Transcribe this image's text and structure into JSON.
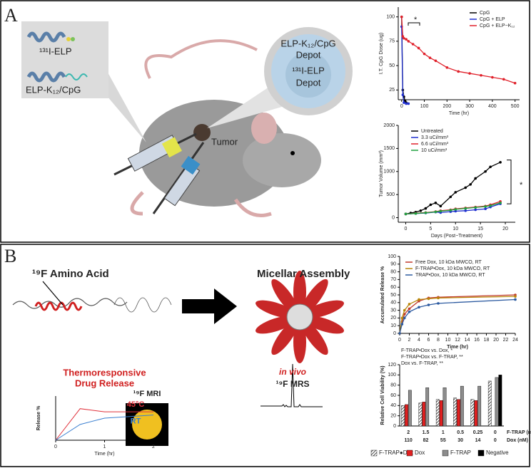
{
  "panels": [
    {
      "label": "A",
      "texts": [
        "¹³¹I-ELP",
        "ELP-K₁₂/CpG",
        "ELP-K₁₂/CpG",
        "Depot",
        "¹³¹I-ELP",
        "Depot",
        "Tumor"
      ]
    },
    {
      "label": "B",
      "texts": [
        "¹⁹F Amino Acid",
        "Micellar Assembly",
        "¹⁹F MRI",
        "in vivo",
        "¹⁹F MRS"
      ]
    }
  ],
  "chart_data": [
    {
      "type": "line",
      "x_label": "Time (hr)",
      "y_label": "I.T. CpG Dose (ug)",
      "xlim": [
        -15,
        520
      ],
      "xticks": [
        0,
        100,
        200,
        300,
        400,
        500
      ],
      "ylim": [
        15,
        110
      ],
      "yticks": [
        25,
        50,
        75,
        100
      ],
      "legend": "upper right",
      "annotation": "*",
      "series": [
        {
          "name": "CpG",
          "color": "#000000",
          "x": [
            0,
            5,
            10,
            15,
            20
          ],
          "values": [
            100,
            25,
            18,
            14,
            12
          ]
        },
        {
          "name": "CpG + ELP",
          "color": "#1f2fd0",
          "x": [
            0,
            5,
            10,
            20,
            30
          ],
          "values": [
            90,
            20,
            12,
            11,
            11
          ]
        },
        {
          "name": "CpG + ELP−K₁₂",
          "color": "#e0202a",
          "x": [
            0,
            5,
            10,
            20,
            30,
            50,
            75,
            100,
            125,
            150,
            200,
            250,
            300,
            350,
            400,
            450,
            500
          ],
          "values": [
            100,
            80,
            78,
            77,
            75,
            72,
            68,
            62,
            58,
            55,
            48,
            44,
            42,
            40,
            38,
            36,
            32
          ]
        }
      ]
    },
    {
      "type": "line",
      "x_label": "Days (Post−Treatment)",
      "y_label": "Tumor Volume (mm³)",
      "xlim": [
        -1.5,
        22
      ],
      "xticks": [
        0,
        5,
        10,
        15,
        20
      ],
      "ylim": [
        -100,
        2000
      ],
      "yticks": [
        0,
        500,
        1000,
        1500,
        2000
      ],
      "legend": "upper left",
      "annotation": "*",
      "series": [
        {
          "name": "Untreated",
          "color": "#000000",
          "x": [
            0,
            1,
            2,
            3,
            4,
            5,
            6,
            7,
            9,
            10,
            12,
            13,
            14,
            16,
            17,
            19
          ],
          "values": [
            80,
            100,
            120,
            150,
            200,
            280,
            320,
            250,
            450,
            550,
            650,
            720,
            850,
            1000,
            1100,
            1200
          ]
        },
        {
          "name": "3.3 uCi/mm³",
          "color": "#1f2fd0",
          "x": [
            0,
            2,
            4,
            6,
            7,
            9,
            10,
            12,
            14,
            16,
            17,
            19
          ],
          "values": [
            80,
            90,
            100,
            120,
            110,
            130,
            140,
            150,
            170,
            190,
            230,
            300
          ]
        },
        {
          "name": "6.6 uCi/mm³",
          "color": "#e0202a",
          "x": [
            0,
            2,
            4,
            6,
            7,
            9,
            10,
            12,
            14,
            16,
            17,
            19
          ],
          "values": [
            80,
            95,
            110,
            130,
            150,
            170,
            190,
            210,
            230,
            250,
            280,
            350
          ]
        },
        {
          "name": "10 uCi/mm³",
          "color": "#20a040",
          "x": [
            0,
            2,
            4,
            6,
            7,
            9,
            10,
            12,
            14,
            16,
            17,
            19
          ],
          "values": [
            80,
            90,
            105,
            125,
            140,
            160,
            180,
            200,
            220,
            240,
            260,
            320
          ]
        }
      ]
    },
    {
      "type": "line",
      "x_label": "Time (hr)",
      "y_label": "Accumulated Release %",
      "xlim": [
        0,
        24
      ],
      "xticks": [
        0,
        2,
        4,
        6,
        8,
        10,
        12,
        14,
        16,
        18,
        20,
        22,
        24
      ],
      "ylim": [
        0,
        100
      ],
      "yticks": [
        0,
        10,
        20,
        30,
        40,
        50,
        60,
        70,
        80,
        90,
        100
      ],
      "legend": "upper left",
      "series": [
        {
          "name": "Free Dox, 10 kDa MWCO, RT",
          "color": "#c0392b",
          "x": [
            0,
            0.5,
            1,
            2,
            4,
            6,
            8,
            24
          ],
          "values": [
            0,
            15,
            25,
            32,
            42,
            46,
            47,
            50
          ]
        },
        {
          "name": "F-TRAP•Dox, 10 kDa MWCO, RT",
          "color": "#b8860b",
          "x": [
            0,
            0.5,
            1,
            2,
            4,
            6,
            8,
            24
          ],
          "values": [
            0,
            20,
            30,
            38,
            44,
            45,
            46,
            48
          ]
        },
        {
          "name": "TRAP•Dox, 10 kDa MWCO, RT",
          "color": "#2c5aa0",
          "x": [
            0,
            0.5,
            1,
            2,
            4,
            6,
            8,
            24
          ],
          "values": [
            0,
            12,
            20,
            28,
            34,
            37,
            39,
            44
          ]
        }
      ]
    },
    {
      "type": "line",
      "title": [
        "Thermoresponsive",
        "Drug Release"
      ],
      "x_label": "Time (hr)",
      "y_label": "Release %",
      "xlim": [
        0,
        2
      ],
      "xticks": [
        0,
        1,
        2
      ],
      "ylim": [
        0,
        70
      ],
      "legend": "inline",
      "series": [
        {
          "name": "45°C",
          "color": "#e0303a",
          "x": [
            0,
            0.5,
            1,
            2
          ],
          "values": [
            0,
            50,
            45,
            45
          ]
        },
        {
          "name": "RT",
          "color": "#3a7fd0",
          "x": [
            0,
            0.5,
            1,
            2
          ],
          "values": [
            0,
            25,
            35,
            40
          ]
        }
      ]
    },
    {
      "type": "bar",
      "y_label": "Relative Cell Viability (%)",
      "ylim": [
        0,
        120
      ],
      "yticks": [
        0,
        20,
        40,
        60,
        80,
        100,
        120
      ],
      "legend": "bottom",
      "annotations": [
        "F-TRAP•Dox vs. Dox, *",
        "F-TRAP•Dox vs. F-TRAP, **",
        "Dox vs. F-TRAP, **"
      ],
      "category_rows": [
        {
          "label": "F-TRAP (mg/mL)",
          "values": [
            "2",
            "1.5",
            "1",
            "0.5",
            "0.25",
            "0"
          ]
        },
        {
          "label": "Dox (nM)",
          "values": [
            "110",
            "82",
            "55",
            "30",
            "14",
            "0"
          ]
        }
      ],
      "series": [
        {
          "name": "F-TRAP●Dox",
          "color": "#ffffff",
          "pattern": "hatch",
          "values": [
            40,
            45,
            52,
            55,
            52,
            88
          ]
        },
        {
          "name": "Dox",
          "color": "#e02020",
          "values": [
            42,
            47,
            50,
            52,
            50,
            null
          ]
        },
        {
          "name": "F-TRAP",
          "color": "#8c8c8c",
          "values": [
            70,
            75,
            75,
            78,
            78,
            95
          ]
        },
        {
          "name": "Negative",
          "color": "#000000",
          "values": [
            null,
            null,
            null,
            null,
            null,
            100
          ]
        }
      ]
    }
  ]
}
